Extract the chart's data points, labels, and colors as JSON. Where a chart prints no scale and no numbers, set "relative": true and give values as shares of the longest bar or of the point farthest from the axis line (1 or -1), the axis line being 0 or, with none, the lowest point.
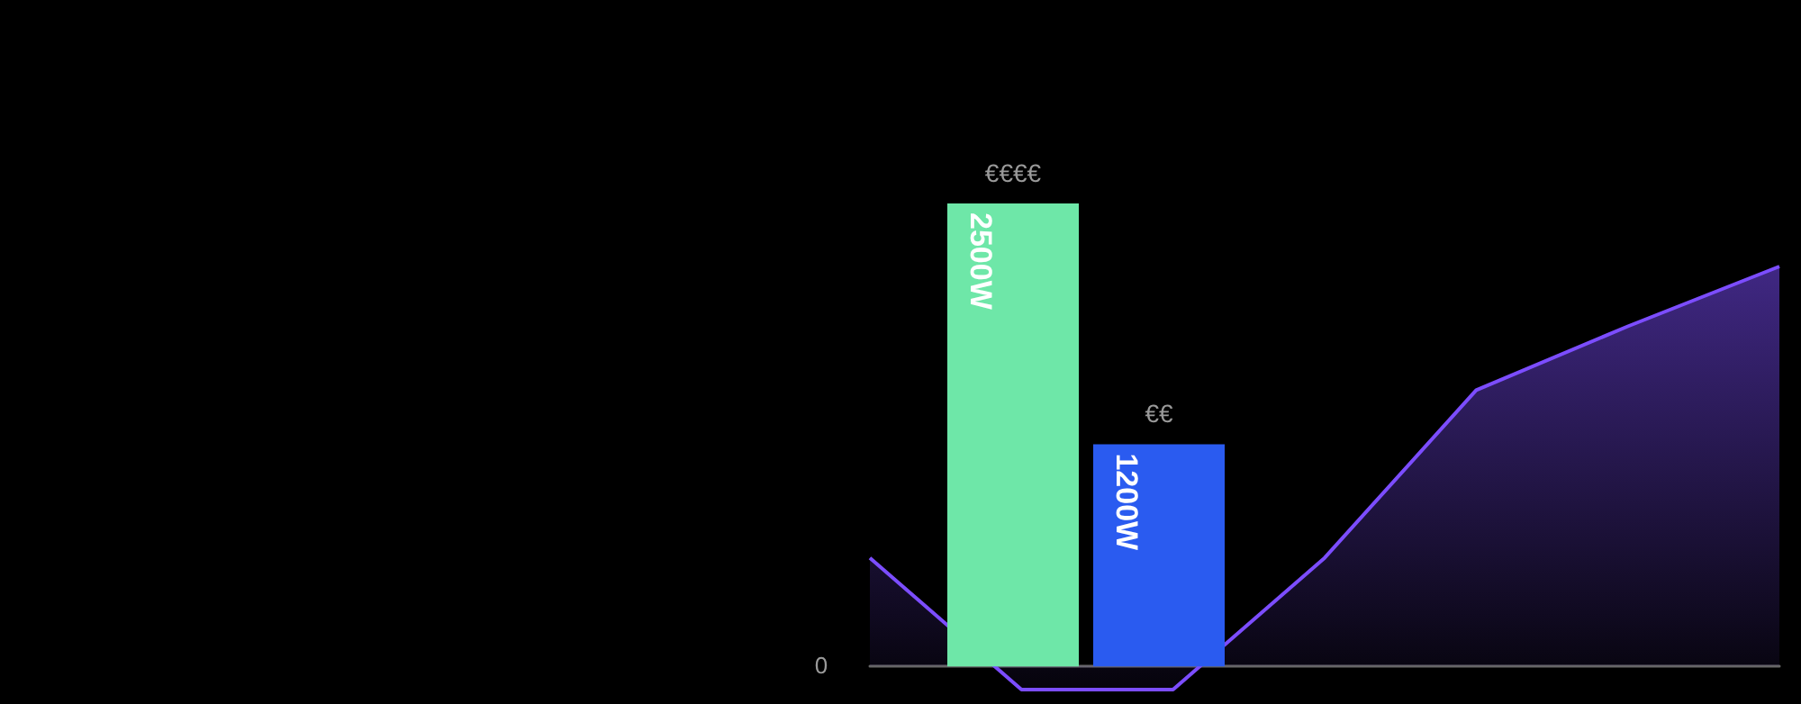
{
  "chart_data": [
    {
      "type": "area",
      "relative": true,
      "categories": [
        null,
        null,
        null,
        null,
        null,
        null,
        null
      ],
      "series": [
        {
          "color": "#7c4dff",
          "values": [
            0.27,
            -0.06,
            -0.06,
            0.27,
            0.69,
            0.85,
            1
          ]
        }
      ],
      "annotations": [
        "0"
      ]
    },
    {
      "type": "bar",
      "categories": [
        null,
        null
      ],
      "series": [
        {
          "colors": [
            "#6ee7a8",
            "#2a5bf0"
          ],
          "values": [
            2500,
            1200
          ],
          "value_labels": [
            "2500W",
            "1200W"
          ]
        }
      ],
      "annotations": [
        "€€€€",
        "€€"
      ]
    }
  ]
}
